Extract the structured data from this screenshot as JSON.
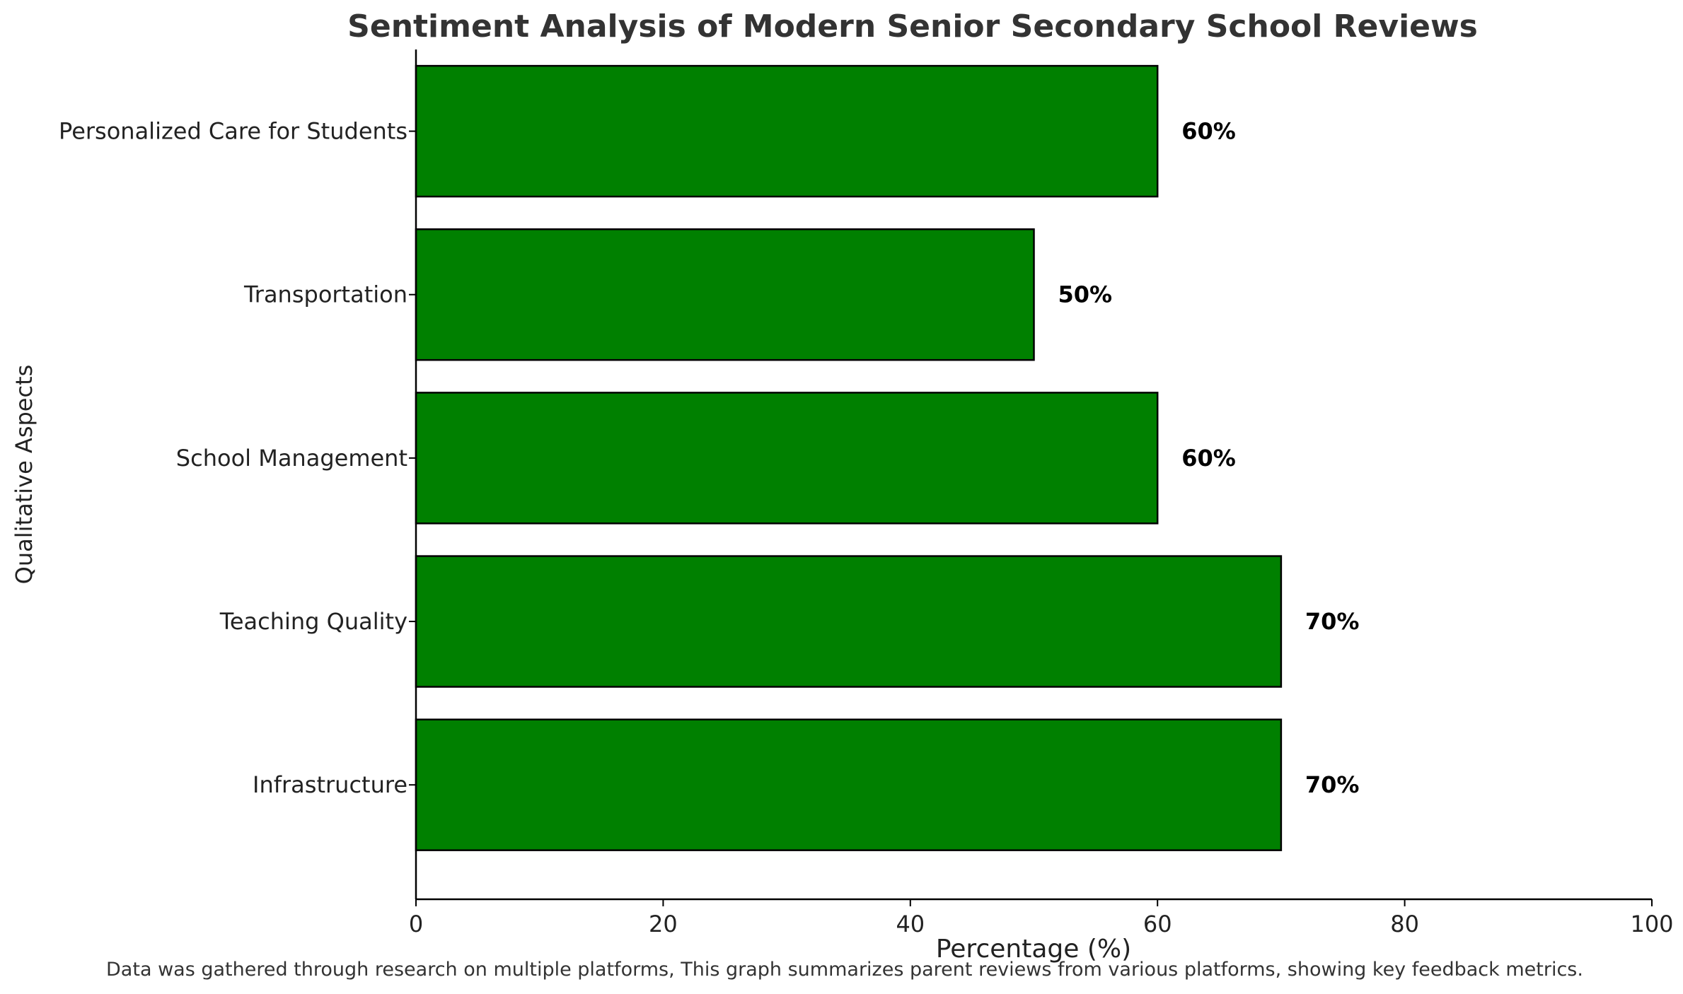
{
  "chart_data": {
    "type": "bar",
    "orientation": "horizontal",
    "title": "Sentiment Analysis of Modern Senior Secondary School Reviews",
    "xlabel": "Percentage (%)",
    "ylabel": "Qualitative Aspects",
    "categories": [
      "Infrastructure",
      "Teaching Quality",
      "School Management",
      "Transportation",
      "Personalized Care for Students"
    ],
    "values": [
      70,
      70,
      60,
      50,
      60
    ],
    "data_labels": [
      "70%",
      "70%",
      "60%",
      "50%",
      "60%"
    ],
    "xlim": [
      0,
      100
    ],
    "xticks": [
      0,
      20,
      40,
      60,
      80,
      100
    ],
    "xtick_labels": [
      "0",
      "20",
      "40",
      "60",
      "80",
      "100"
    ],
    "bar_color": "#008000",
    "bar_edge_color": "#000000",
    "grid": false,
    "legend": "none"
  },
  "footnote": "Data was gathered through research on multiple platforms, This graph summarizes parent reviews from various platforms, showing key feedback metrics."
}
